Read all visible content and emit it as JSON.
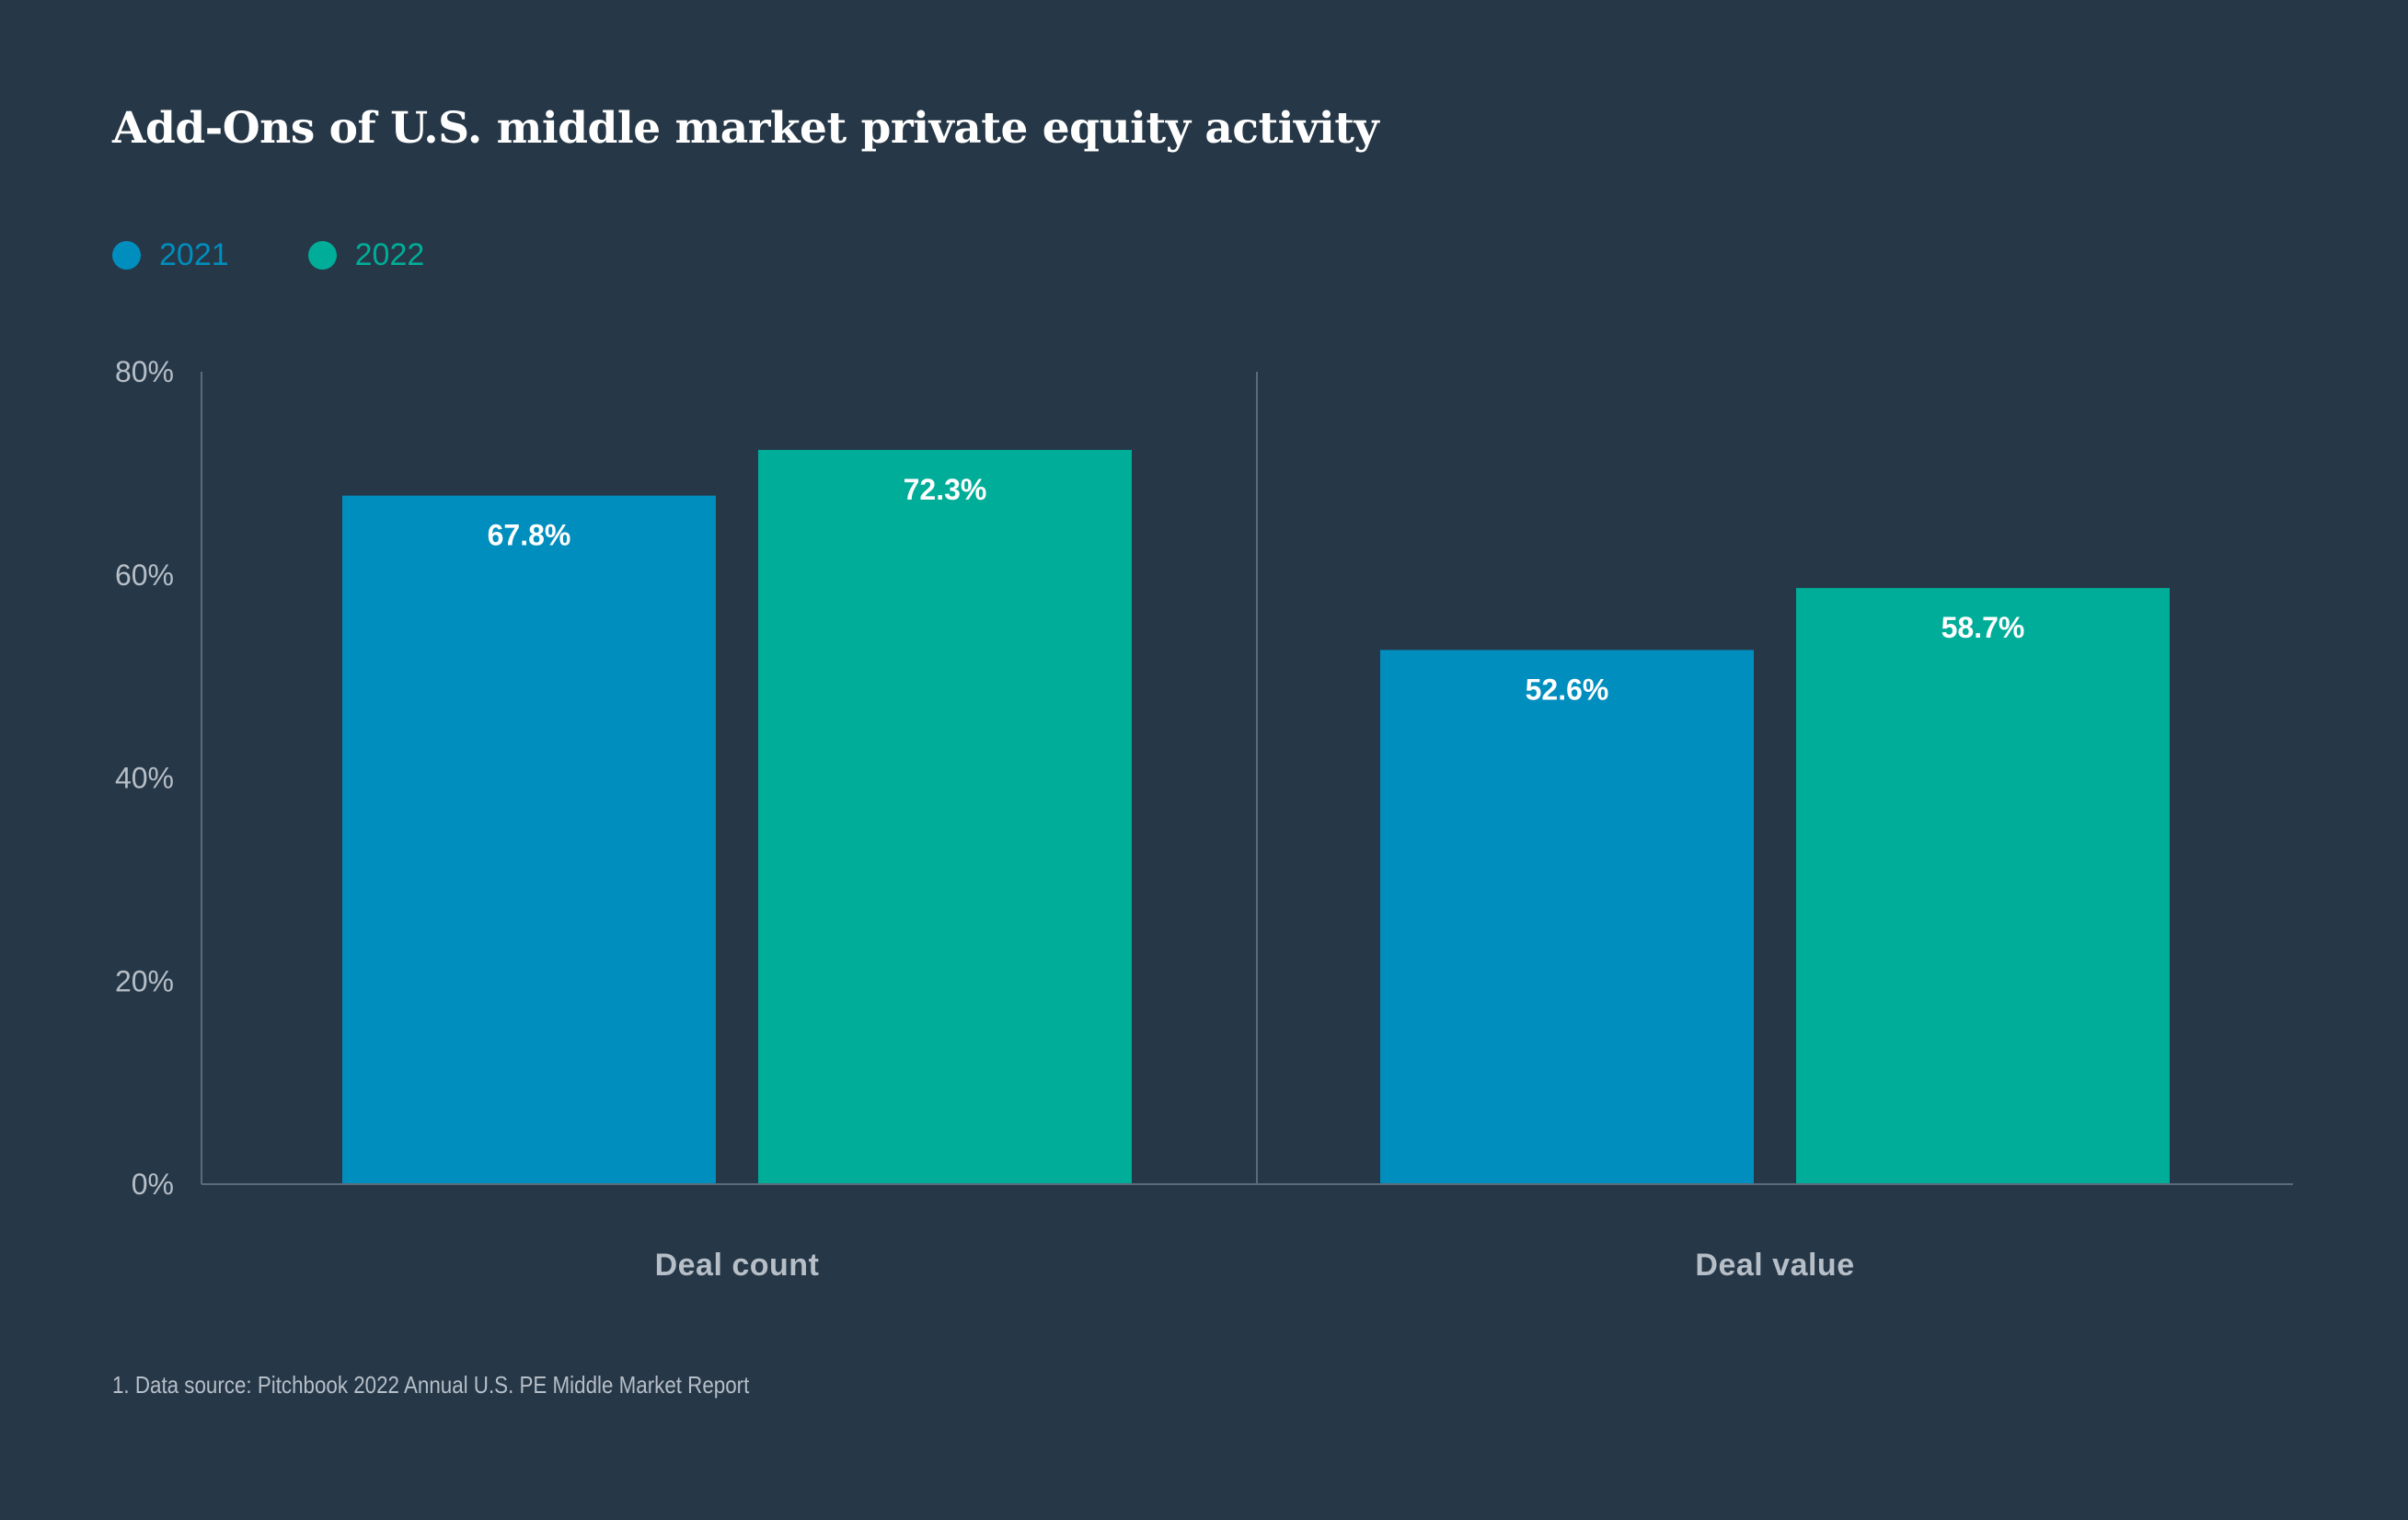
{
  "colors": {
    "background": "#263747",
    "series_2021": "#008ebe",
    "series_2022": "#00ad98",
    "axis_text": "#b6bec7",
    "axis_line": "#5c6b7a",
    "title": "#ffffff",
    "bar_label": "#ffffff"
  },
  "chart_data": {
    "type": "bar",
    "title": "Add-Ons of U.S. middle market private equity activity",
    "categories": [
      "Deal count",
      "Deal value"
    ],
    "series": [
      {
        "name": "2021",
        "values": [
          67.8,
          52.6
        ],
        "labels": [
          "67.8%",
          "52.6%"
        ]
      },
      {
        "name": "2022",
        "values": [
          72.3,
          58.7
        ],
        "labels": [
          "72.3%",
          "58.7%"
        ]
      }
    ],
    "ylim": [
      0,
      80
    ],
    "yticks": [
      0,
      20,
      40,
      60,
      80
    ],
    "ytick_labels": [
      "0%",
      "20%",
      "40%",
      "60%",
      "80%"
    ],
    "xlabel": "",
    "ylabel": "",
    "legend": "top-left",
    "grid": false
  },
  "footnote": "1. Data source: Pitchbook 2022 Annual U.S. PE Middle Market Report"
}
